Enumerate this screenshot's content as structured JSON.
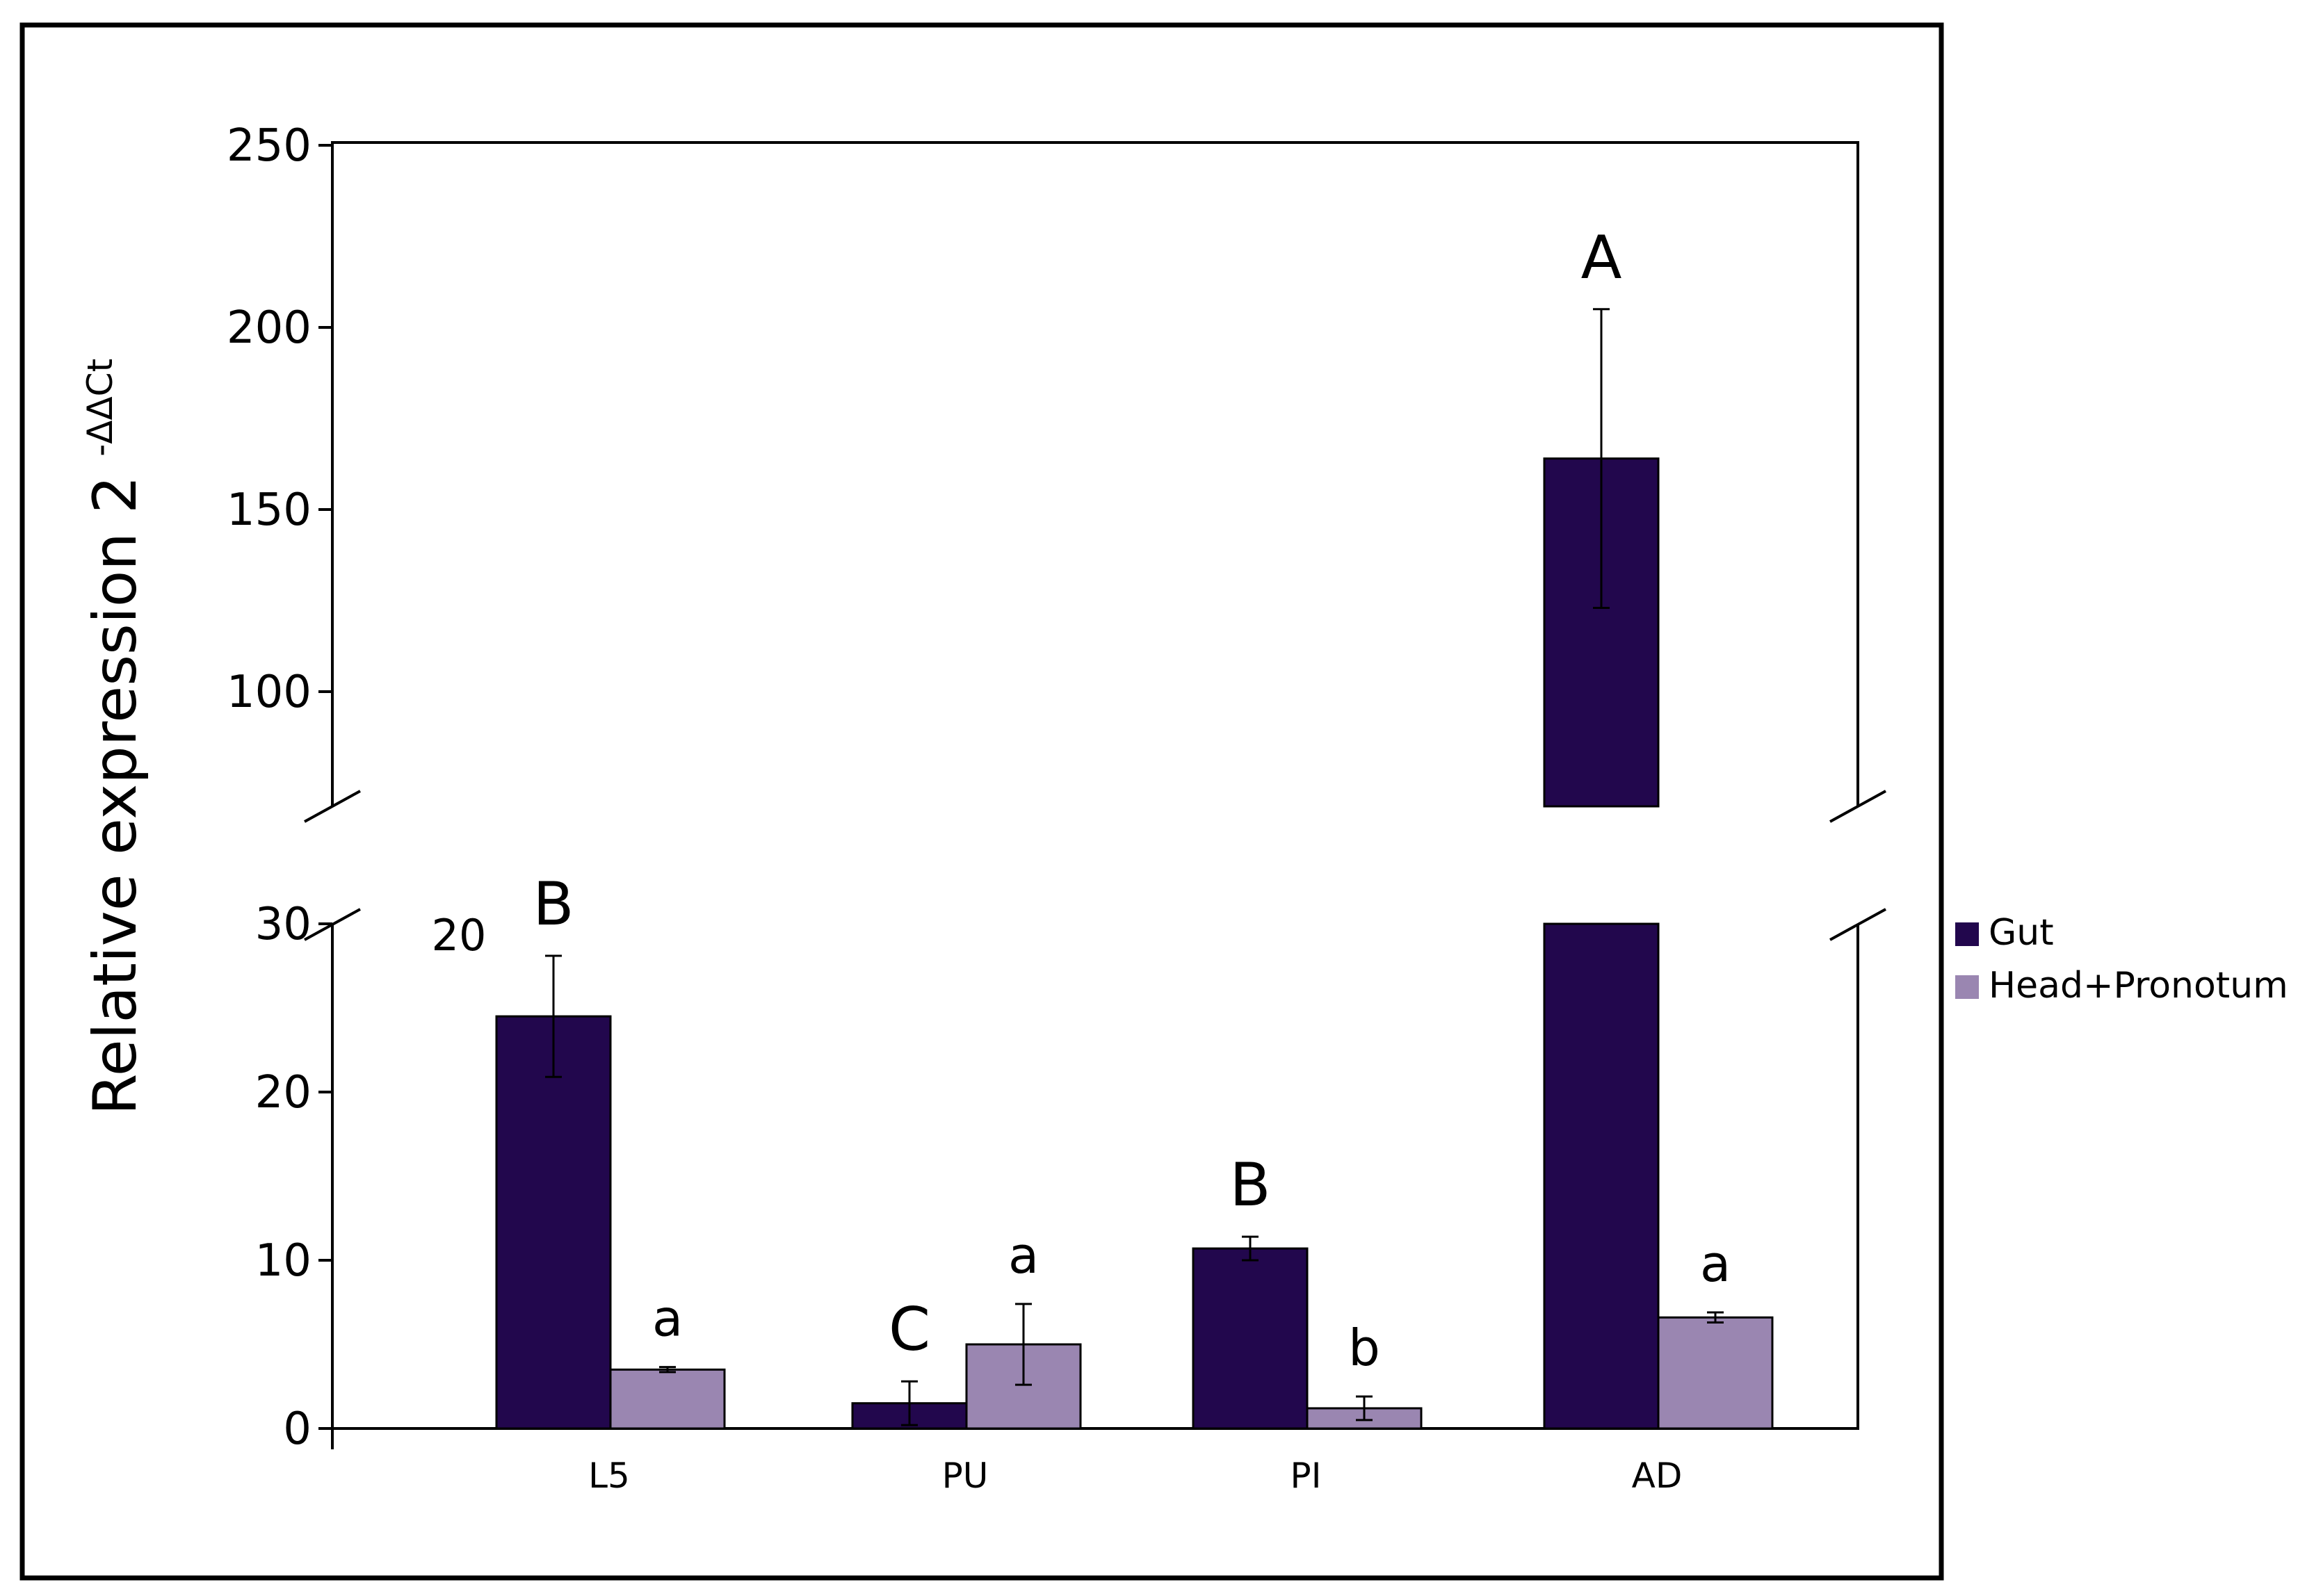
{
  "chart_data": {
    "type": "bar",
    "title": "",
    "xlabel": "",
    "ylabel": "Relative expression 2",
    "ylabel_superscript": "-ΔΔCt",
    "categories": [
      "L5",
      "PU",
      "PI",
      "AD"
    ],
    "series": [
      {
        "name": "Gut",
        "color": "#22074d",
        "values": [
          24.5,
          1.5,
          10.7,
          164
        ],
        "errors": [
          3.6,
          1.3,
          0.7,
          41
        ],
        "significance": [
          "B",
          "C",
          "B",
          "A"
        ]
      },
      {
        "name": "Head+Pronotum",
        "color": "#9a86b1",
        "values": [
          3.5,
          5.0,
          1.2,
          6.6
        ],
        "errors": [
          0.15,
          2.4,
          0.7,
          0.3
        ],
        "significance": [
          "a",
          "a",
          "b",
          "a"
        ]
      }
    ],
    "y_axis_break": {
      "lower_segment": [
        0,
        30
      ],
      "upper_segment": [
        70,
        250
      ]
    },
    "yticks_lower": [
      0,
      10,
      20,
      30
    ],
    "yticks_upper": [
      100,
      150,
      200,
      250
    ],
    "ytick_labels_lower": [
      "0",
      "10",
      "20",
      "30"
    ],
    "ytick_labels_upper": [
      "100",
      "150",
      "200",
      "250"
    ],
    "extra_label": "20",
    "legend_position": "right",
    "grid": false
  }
}
